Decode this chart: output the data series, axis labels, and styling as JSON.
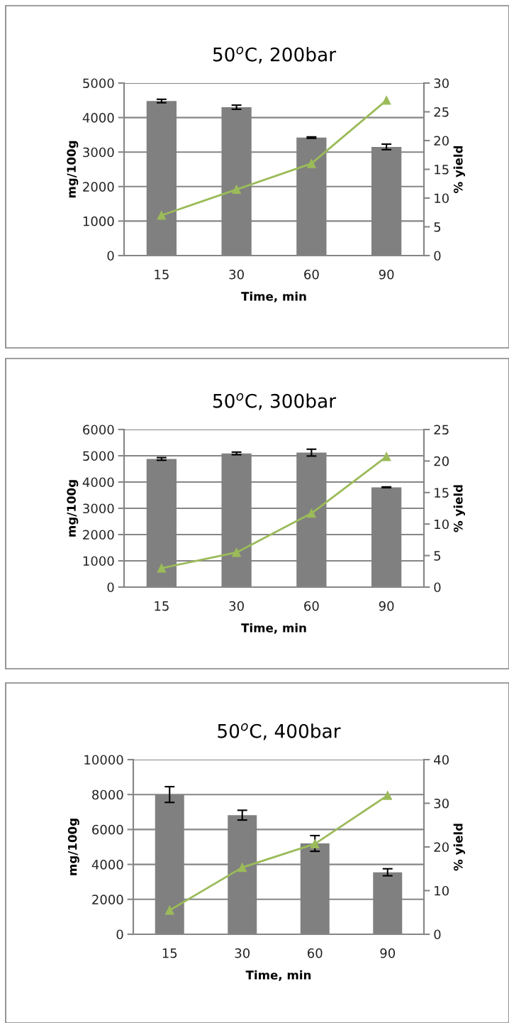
{
  "chart_data": [
    {
      "type": "bar",
      "title": "50$^{o}$C, 200bar",
      "xlabel": "Time, min",
      "ylabel": "mg/100g",
      "y2label": "% yield",
      "categories": [
        "15",
        "30",
        "60",
        "90"
      ],
      "series": [
        {
          "color": "#808080",
          "values": [
            4480,
            4300,
            3420,
            3150
          ],
          "errors": [
            50,
            60,
            20,
            80
          ]
        },
        {
          "type": "line",
          "axis": "y2",
          "color": "#9bbb59",
          "values": [
            7,
            11.5,
            16,
            27
          ]
        }
      ],
      "ylim": [
        0,
        5000
      ],
      "yticks": [
        0,
        1000,
        2000,
        3000,
        4000,
        5000
      ],
      "y2lim": [
        0,
        30
      ],
      "y2ticks": [
        0,
        5,
        10,
        15,
        20,
        25,
        30
      ],
      "grid": "y",
      "marker": "triangle",
      "line_style": "solid"
    },
    {
      "type": "bar",
      "title": "50$^{o}$C, 300bar",
      "xlabel": "Time, min",
      "ylabel": "mg/100g",
      "y2label": "% yield",
      "categories": [
        "15",
        "30",
        "60",
        "90"
      ],
      "series": [
        {
          "color": "#808080",
          "values": [
            4880,
            5090,
            5120,
            3800
          ],
          "errors": [
            50,
            50,
            130,
            15
          ]
        },
        {
          "type": "line",
          "axis": "y2",
          "color": "#9bbb59",
          "values": [
            3,
            5.5,
            11.7,
            20.7
          ]
        }
      ],
      "ylim": [
        0,
        6000
      ],
      "yticks": [
        0,
        1000,
        2000,
        3000,
        4000,
        5000,
        6000
      ],
      "y2lim": [
        0,
        25
      ],
      "y2ticks": [
        0,
        5,
        10,
        15,
        20,
        25
      ],
      "grid": "y",
      "marker": "triangle",
      "line_style": "solid"
    },
    {
      "type": "bar",
      "title": "50$^{o}$C, 400bar",
      "xlabel": "Time, min",
      "ylabel": "mg/100g",
      "y2label": "% yield",
      "categories": [
        "15",
        "30",
        "60",
        "90"
      ],
      "series": [
        {
          "color": "#808080",
          "values": [
            8000,
            6820,
            5200,
            3550
          ],
          "errors": [
            450,
            280,
            450,
            200
          ]
        },
        {
          "type": "line",
          "axis": "y2",
          "color": "#9bbb59",
          "values": [
            5.5,
            15.3,
            20.7,
            31.8
          ]
        }
      ],
      "ylim": [
        0,
        10000
      ],
      "yticks": [
        0,
        2000,
        4000,
        6000,
        8000,
        10000
      ],
      "y2lim": [
        0,
        40
      ],
      "y2ticks": [
        0,
        10,
        20,
        30,
        40
      ],
      "grid": "y",
      "marker": "triangle",
      "line_style": "solid"
    }
  ]
}
